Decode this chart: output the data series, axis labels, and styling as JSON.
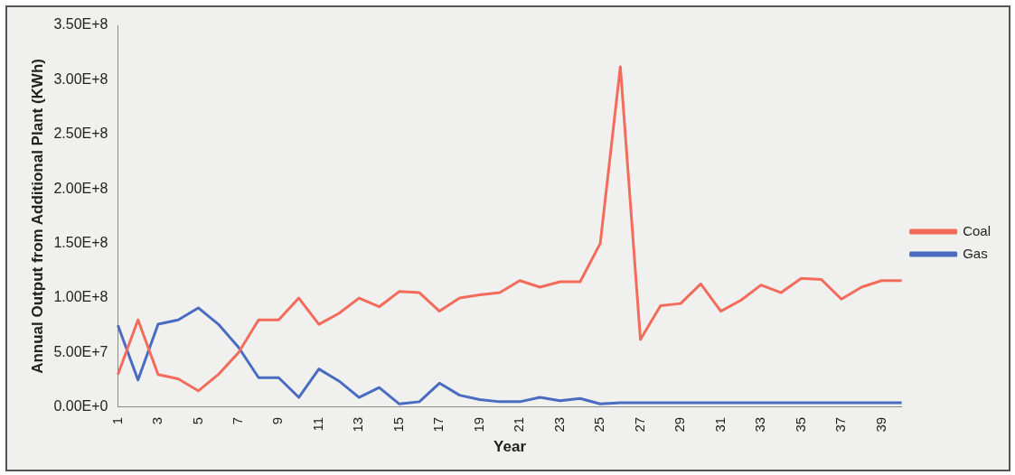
{
  "chart_data": {
    "type": "line",
    "xlabel": "Year",
    "ylabel": "Annual Output from Additional Plant (KWh)",
    "categories": [
      "1",
      null,
      "3",
      null,
      "5",
      null,
      "7",
      null,
      "9",
      null,
      "11",
      null,
      "13",
      null,
      "15",
      null,
      "17",
      null,
      "19",
      null,
      "21",
      null,
      "23",
      null,
      "25",
      null,
      "27",
      null,
      "29",
      null,
      "31",
      null,
      "33",
      null,
      "35",
      null,
      "37",
      null,
      "39",
      null
    ],
    "series": [
      {
        "name": "Coal",
        "color": "#f26b5b",
        "values": [
          30000000,
          80000000,
          30000000,
          26000000,
          15000000,
          30000000,
          50000000,
          80000000,
          80000000,
          100000000,
          76000000,
          86000000,
          100000000,
          92000000,
          106000000,
          105000000,
          88000000,
          100000000,
          103000000,
          105000000,
          116000000,
          110000000,
          115000000,
          115000000,
          150000000,
          312000000,
          62000000,
          93000000,
          95000000,
          113000000,
          88000000,
          98000000,
          112000000,
          105000000,
          118000000,
          117000000,
          99000000,
          110000000,
          116000000,
          116000000
        ]
      },
      {
        "name": "Gas",
        "color": "#4a6cc0",
        "values": [
          75000000,
          25000000,
          76000000,
          80000000,
          91000000,
          76000000,
          55000000,
          27000000,
          27000000,
          9000000,
          35000000,
          24000000,
          9000000,
          18000000,
          3000000,
          5000000,
          22000000,
          11000000,
          7000000,
          5000000,
          5000000,
          9000000,
          6000000,
          8000000,
          3000000,
          4000000,
          4000000,
          4000000,
          4000000,
          4000000,
          4000000,
          4000000,
          4000000,
          4000000,
          4000000,
          4000000,
          4000000,
          4000000,
          4000000,
          4000000
        ]
      }
    ],
    "ylim": [
      0,
      350000000
    ],
    "yticks": [
      {
        "value": 0,
        "label": "0.00E+0"
      },
      {
        "value": 50000000,
        "label": "5.00E+7"
      },
      {
        "value": 100000000,
        "label": "1.00E+8"
      },
      {
        "value": 150000000,
        "label": "1.50E+8"
      },
      {
        "value": 200000000,
        "label": "2.00E+8"
      },
      {
        "value": 250000000,
        "label": "2.50E+8"
      },
      {
        "value": 300000000,
        "label": "3.00E+8"
      },
      {
        "value": 350000000,
        "label": "3.50E+8"
      }
    ],
    "grid": false,
    "legend": "right",
    "marker": "none",
    "line_style": "solid"
  }
}
